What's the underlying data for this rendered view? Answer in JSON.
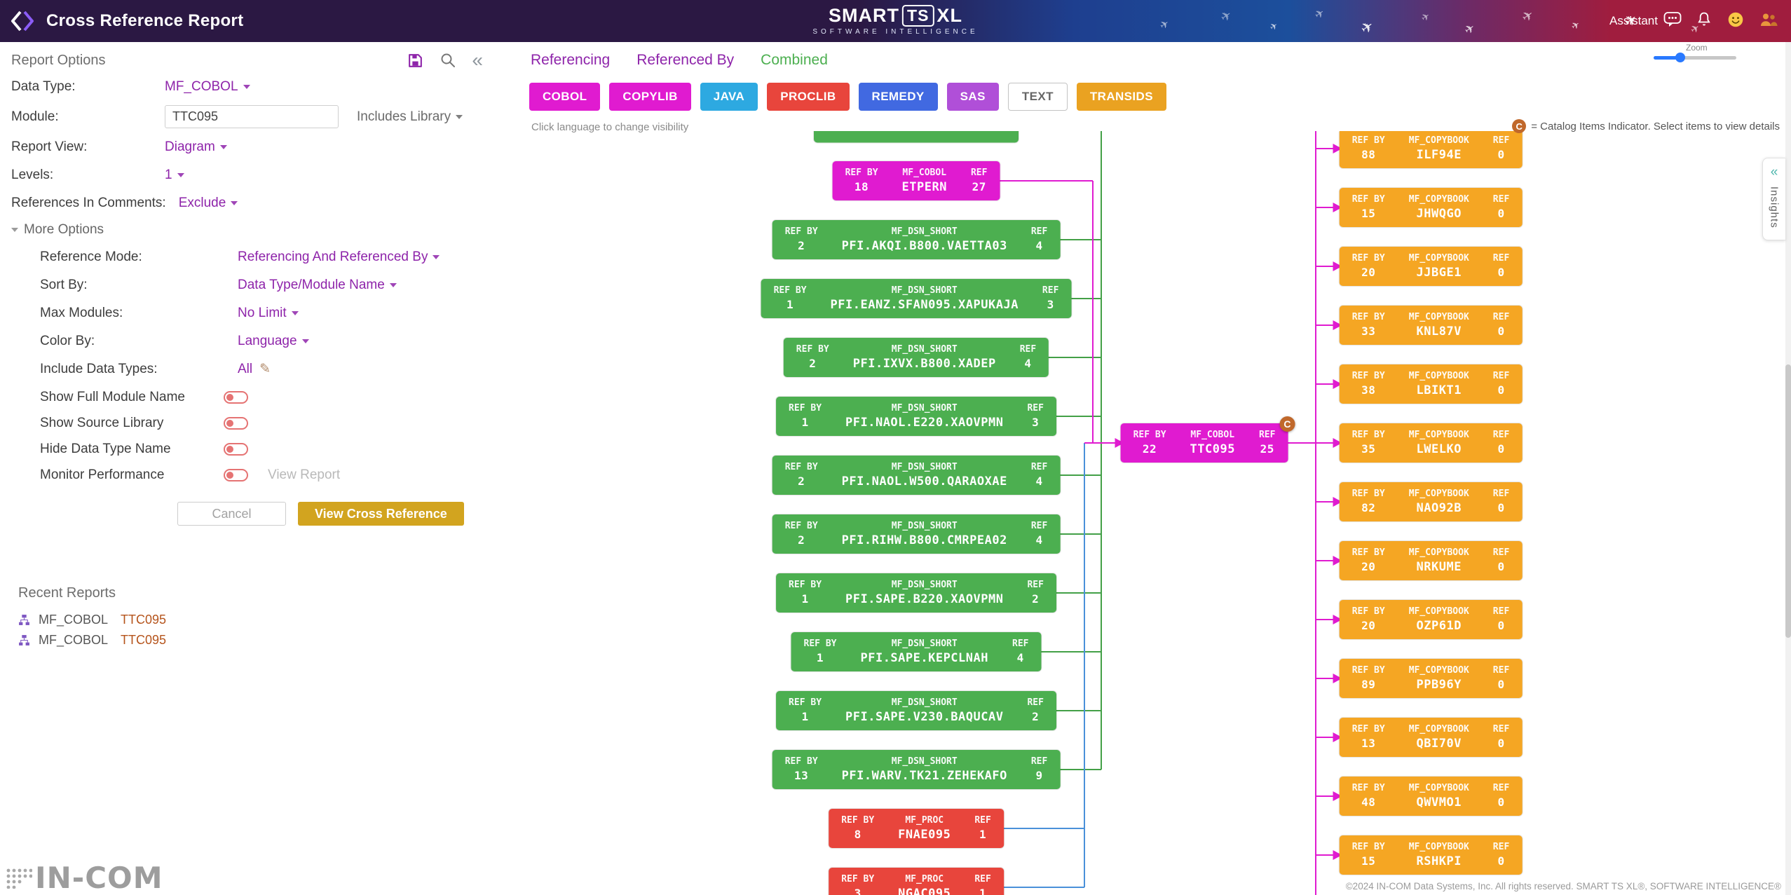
{
  "colors": {
    "magenta": "#e01bd0",
    "green": "#4caf50",
    "green_line": "#43a047",
    "red": "#e8453c",
    "orange": "#f5a623",
    "blue_line": "#4a90d9",
    "gold": "#d2a41f",
    "purple_accent": "#8e24aa",
    "toggle_off": "#e57373"
  },
  "header": {
    "title": "Cross Reference Report",
    "brand_smart": "SMART",
    "brand_ts": "TS",
    "brand_xl": "XL",
    "brand_sub": "SOFTWARE INTELLIGENCE",
    "assistant_label": "Assistant"
  },
  "sidebar": {
    "title": "Report Options",
    "fields": {
      "data_type": {
        "label": "Data Type:",
        "value": "MF_COBOL"
      },
      "module": {
        "label": "Module:",
        "value": "TTC095",
        "extra": "Includes Library"
      },
      "report_view": {
        "label": "Report View:",
        "value": "Diagram"
      },
      "levels": {
        "label": "Levels:",
        "value": "1"
      },
      "ref_comments": {
        "label": "References In Comments:",
        "value": "Exclude"
      }
    },
    "more_options": {
      "label": "More Options",
      "fields": {
        "reference_mode": {
          "label": "Reference Mode:",
          "value": "Referencing And Referenced By"
        },
        "sort_by": {
          "label": "Sort By:",
          "value": "Data Type/Module Name"
        },
        "max_modules": {
          "label": "Max Modules:",
          "value": "No Limit"
        },
        "color_by": {
          "label": "Color By:",
          "value": "Language"
        },
        "include_data_types": {
          "label": "Include Data Types:",
          "value": "All"
        }
      }
    },
    "toggles": [
      {
        "label": "Show Full Module Name"
      },
      {
        "label": "Show Source Library"
      },
      {
        "label": "Hide Data Type Name"
      },
      {
        "label": "Monitor Performance",
        "trailing": "View Report"
      }
    ],
    "buttons": {
      "cancel": "Cancel",
      "submit": "View Cross Reference"
    },
    "recent": {
      "title": "Recent Reports",
      "items": [
        {
          "type": "MF_COBOL",
          "name": "TTC095"
        },
        {
          "type": "MF_COBOL",
          "name": "TTC095"
        }
      ]
    }
  },
  "main": {
    "tabs": [
      {
        "label": "Referencing",
        "active": false
      },
      {
        "label": "Referenced By",
        "active": false
      },
      {
        "label": "Combined",
        "active": true
      }
    ],
    "languages": [
      {
        "label": "COBOL",
        "color": "#e01bd0"
      },
      {
        "label": "COPYLIB",
        "color": "#e01bd0"
      },
      {
        "label": "JAVA",
        "color": "#2da9e1"
      },
      {
        "label": "PROCLIB",
        "color": "#e8453c"
      },
      {
        "label": "REMEDY",
        "color": "#4169e1"
      },
      {
        "label": "SAS",
        "color": "#b04fd8"
      },
      {
        "label": "TEXT",
        "color": "#ffffff",
        "light": true
      },
      {
        "label": "TRANSIDS",
        "color": "#eaa221"
      }
    ],
    "hint": "Click language to change visibility",
    "catalog_letter": "C",
    "catalog_note": "= Catalog Items Indicator. Select items to view details",
    "zoom_label": "Zoom"
  },
  "diagram": {
    "labels": {
      "ref_by": "REF BY",
      "ref": "REF"
    },
    "left_nodes": [
      {
        "partial": true,
        "color": "green",
        "ref_by": "",
        "type": "",
        "name": "",
        "ref": ""
      },
      {
        "ref_by": "18",
        "type": "MF_COBOL",
        "name": "ETPERN",
        "ref": "27",
        "color": "magenta"
      },
      {
        "ref_by": "2",
        "type": "MF_DSN_SHORT",
        "name": "PFI.AKQI.B800.VAETTA03",
        "ref": "4",
        "color": "green"
      },
      {
        "ref_by": "1",
        "type": "MF_DSN_SHORT",
        "name": "PFI.EANZ.SFAN095.XAPUKAJA",
        "ref": "3",
        "color": "green"
      },
      {
        "ref_by": "2",
        "type": "MF_DSN_SHORT",
        "name": "PFI.IXVX.B800.XADEP",
        "ref": "4",
        "color": "green"
      },
      {
        "ref_by": "1",
        "type": "MF_DSN_SHORT",
        "name": "PFI.NAOL.E220.XAOVPMN",
        "ref": "3",
        "color": "green"
      },
      {
        "ref_by": "2",
        "type": "MF_DSN_SHORT",
        "name": "PFI.NAOL.W500.QARAOXAE",
        "ref": "4",
        "color": "green"
      },
      {
        "ref_by": "2",
        "type": "MF_DSN_SHORT",
        "name": "PFI.RIHW.B800.CMRPEA02",
        "ref": "4",
        "color": "green"
      },
      {
        "ref_by": "1",
        "type": "MF_DSN_SHORT",
        "name": "PFI.SAPE.B220.XAOVPMN",
        "ref": "2",
        "color": "green"
      },
      {
        "ref_by": "1",
        "type": "MF_DSN_SHORT",
        "name": "PFI.SAPE.KEPCLNAH",
        "ref": "4",
        "color": "green"
      },
      {
        "ref_by": "1",
        "type": "MF_DSN_SHORT",
        "name": "PFI.SAPE.V230.BAQUCAV",
        "ref": "2",
        "color": "green"
      },
      {
        "ref_by": "13",
        "type": "MF_DSN_SHORT",
        "name": "PFI.WARV.TK21.ZEHEKAFO",
        "ref": "9",
        "color": "green"
      },
      {
        "ref_by": "8",
        "type": "MF_PROC",
        "name": "FNAE095",
        "ref": "1",
        "color": "red"
      },
      {
        "ref_by": "3",
        "type": "MF_PROC",
        "name": "NGAC095",
        "ref": "1",
        "color": "red"
      }
    ],
    "center_node": {
      "ref_by": "22",
      "type": "MF_COBOL",
      "name": "TTC095",
      "ref": "25",
      "color": "magenta",
      "catalog": true
    },
    "right_nodes": [
      {
        "ref_by": "88",
        "type": "MF_COPYBOOK",
        "name": "ILF94E",
        "ref": "0"
      },
      {
        "ref_by": "15",
        "type": "MF_COPYBOOK",
        "name": "JHWQGO",
        "ref": "0"
      },
      {
        "ref_by": "20",
        "type": "MF_COPYBOOK",
        "name": "JJBGE1",
        "ref": "0"
      },
      {
        "ref_by": "33",
        "type": "MF_COPYBOOK",
        "name": "KNL87V",
        "ref": "0"
      },
      {
        "ref_by": "38",
        "type": "MF_COPYBOOK",
        "name": "LBIKT1",
        "ref": "0"
      },
      {
        "ref_by": "35",
        "type": "MF_COPYBOOK",
        "name": "LWELKO",
        "ref": "0"
      },
      {
        "ref_by": "82",
        "type": "MF_COPYBOOK",
        "name": "NAO92B",
        "ref": "0"
      },
      {
        "ref_by": "20",
        "type": "MF_COPYBOOK",
        "name": "NRKUME",
        "ref": "0"
      },
      {
        "ref_by": "20",
        "type": "MF_COPYBOOK",
        "name": "OZP61D",
        "ref": "0"
      },
      {
        "ref_by": "89",
        "type": "MF_COPYBOOK",
        "name": "PPB96Y",
        "ref": "0"
      },
      {
        "ref_by": "13",
        "type": "MF_COPYBOOK",
        "name": "QBI70V",
        "ref": "0"
      },
      {
        "ref_by": "48",
        "type": "MF_COPYBOOK",
        "name": "QWVMO1",
        "ref": "0"
      },
      {
        "ref_by": "15",
        "type": "MF_COPYBOOK",
        "name": "RSHKPI",
        "ref": "0"
      }
    ]
  },
  "insights_label": "Insights",
  "footer": {
    "watermark": "IN-COM",
    "copyright": "©2024 IN-COM Data Systems, Inc. All rights reserved. SMART TS XL®, SOFTWARE INTELLIGENCE®"
  }
}
